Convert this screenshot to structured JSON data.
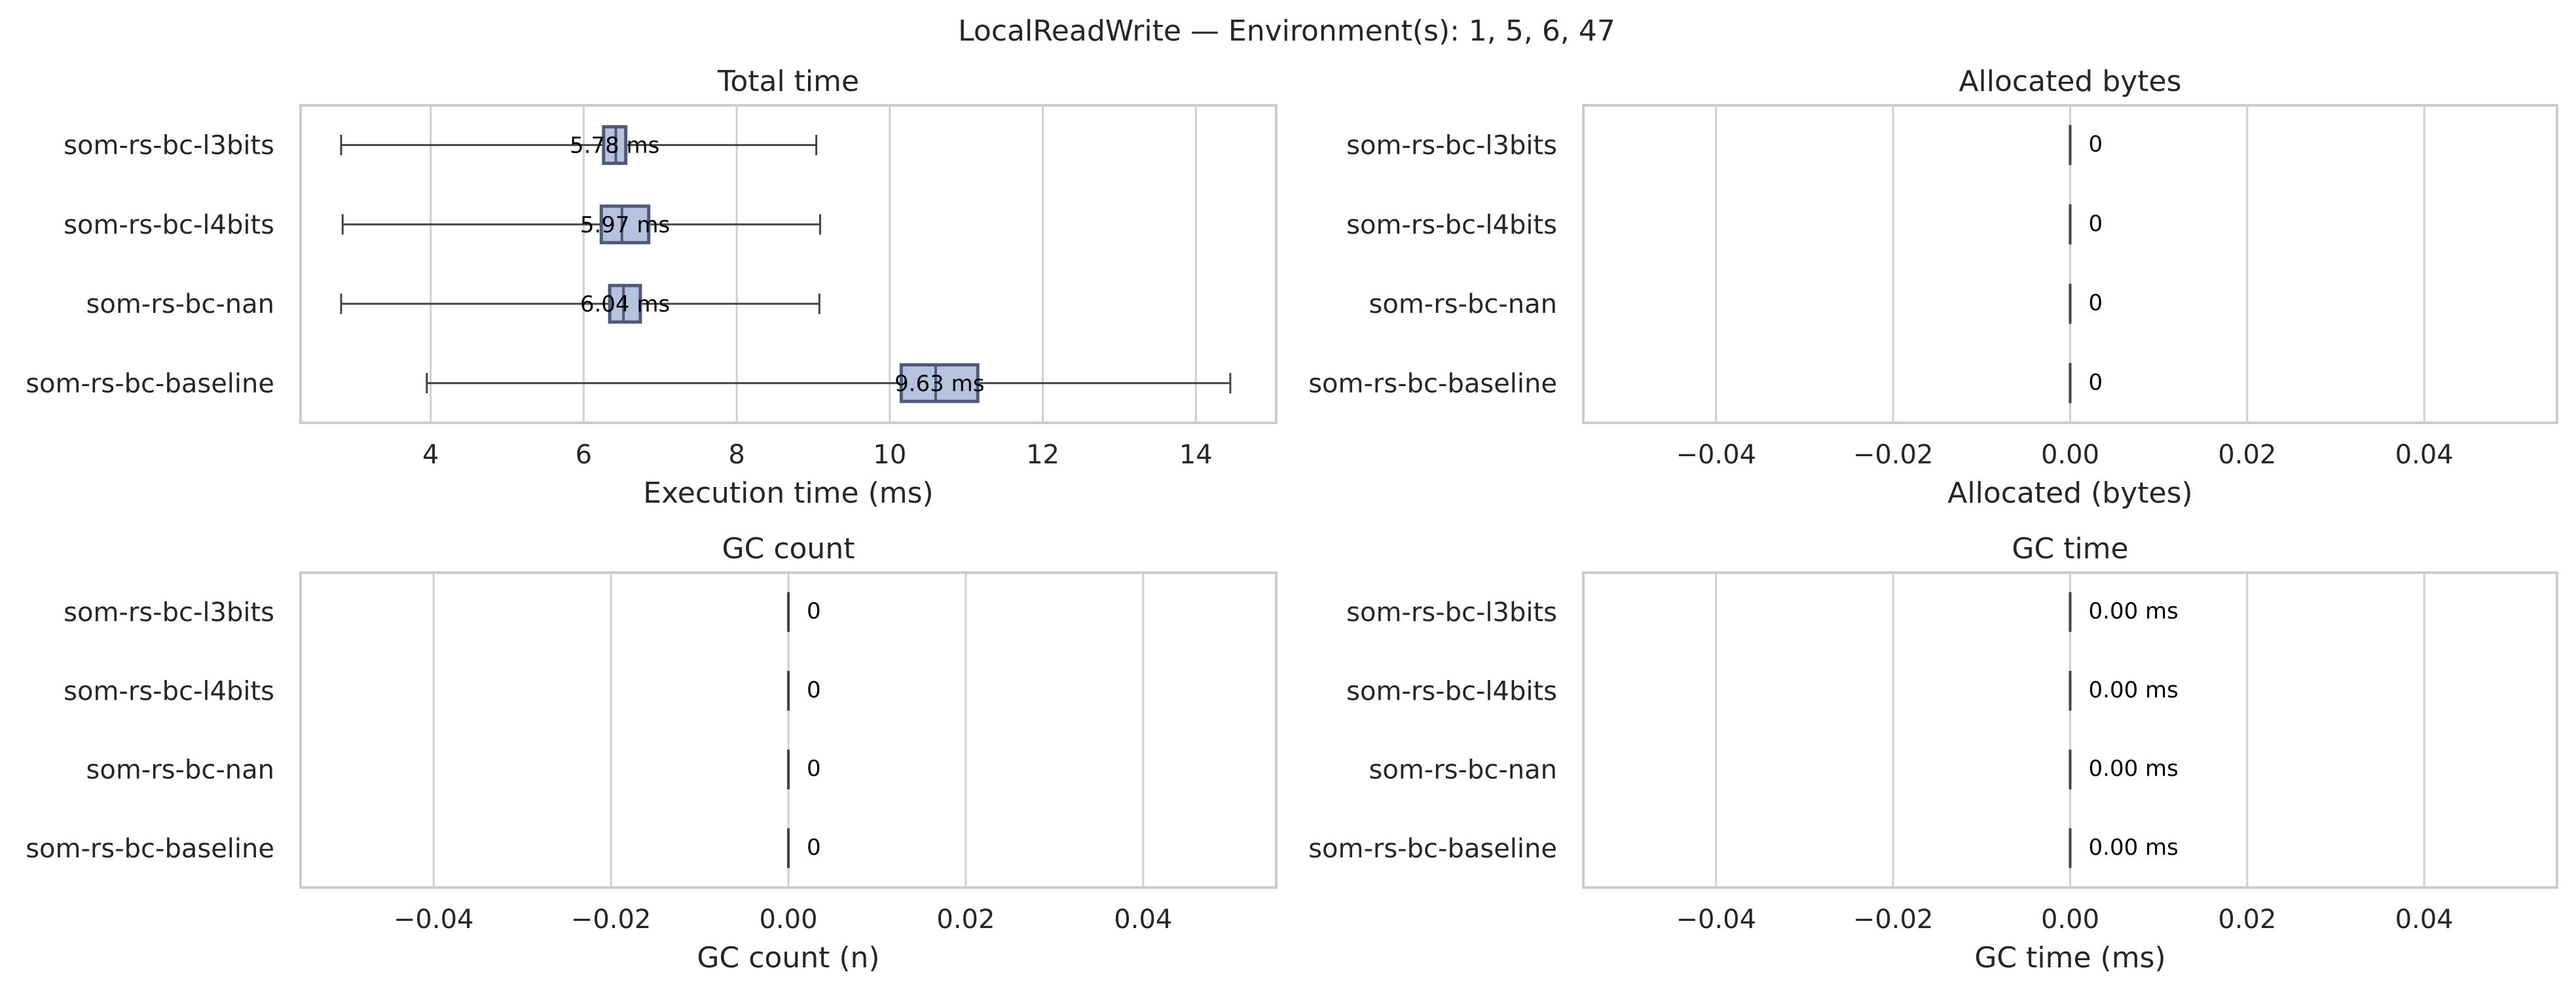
{
  "figure": {
    "suptitle": "LocalReadWrite — Environment(s): 1, 5, 6, 47"
  },
  "chart_data": [
    {
      "type": "box",
      "title": "Total time",
      "xlabel": "Execution time (ms)",
      "ylabel": "",
      "xlim": [
        2.3,
        15.05
      ],
      "xticks": [
        4,
        6,
        8,
        10,
        12,
        14
      ],
      "tick_labels": [
        "4",
        "6",
        "8",
        "10",
        "12",
        "14"
      ],
      "grid": true,
      "categories": [
        "som-rs-bc-l3bits",
        "som-rs-bc-l4bits",
        "som-rs-bc-nan",
        "som-rs-bc-baseline"
      ],
      "boxes": [
        {
          "category": "som-rs-bc-l3bits",
          "whisker_low": 2.83,
          "q1": 6.26,
          "median": 6.42,
          "q3": 6.55,
          "whisker_high": 9.04,
          "label": "5.78 ms"
        },
        {
          "category": "som-rs-bc-l4bits",
          "whisker_low": 2.85,
          "q1": 6.23,
          "median": 6.5,
          "q3": 6.85,
          "whisker_high": 9.09,
          "label": "5.97 ms"
        },
        {
          "category": "som-rs-bc-nan",
          "whisker_low": 2.83,
          "q1": 6.34,
          "median": 6.52,
          "q3": 6.74,
          "whisker_high": 9.08,
          "label": "6.04 ms"
        },
        {
          "category": "som-rs-bc-baseline",
          "whisker_low": 3.95,
          "q1": 10.15,
          "median": 10.6,
          "q3": 11.15,
          "whisker_high": 14.45,
          "label": "9.63 ms"
        }
      ]
    },
    {
      "type": "box",
      "title": "Allocated bytes",
      "xlabel": "Allocated (bytes)",
      "ylabel": "",
      "xlim": [
        -0.055,
        0.055
      ],
      "xticks": [
        -0.04,
        -0.02,
        0,
        0.02,
        0.04
      ],
      "tick_labels": [
        "−0.04",
        "−0.02",
        "0.00",
        "0.02",
        "0.04"
      ],
      "grid": true,
      "categories": [
        "som-rs-bc-l3bits",
        "som-rs-bc-l4bits",
        "som-rs-bc-nan",
        "som-rs-bc-baseline"
      ],
      "boxes": [
        {
          "category": "som-rs-bc-l3bits",
          "whisker_low": 0,
          "q1": 0,
          "median": 0,
          "q3": 0,
          "whisker_high": 0,
          "label": "0"
        },
        {
          "category": "som-rs-bc-l4bits",
          "whisker_low": 0,
          "q1": 0,
          "median": 0,
          "q3": 0,
          "whisker_high": 0,
          "label": "0"
        },
        {
          "category": "som-rs-bc-nan",
          "whisker_low": 0,
          "q1": 0,
          "median": 0,
          "q3": 0,
          "whisker_high": 0,
          "label": "0"
        },
        {
          "category": "som-rs-bc-baseline",
          "whisker_low": 0,
          "q1": 0,
          "median": 0,
          "q3": 0,
          "whisker_high": 0,
          "label": "0"
        }
      ]
    },
    {
      "type": "box",
      "title": "GC count",
      "xlabel": "GC count (n)",
      "ylabel": "",
      "xlim": [
        -0.055,
        0.055
      ],
      "xticks": [
        -0.04,
        -0.02,
        0,
        0.02,
        0.04
      ],
      "tick_labels": [
        "−0.04",
        "−0.02",
        "0.00",
        "0.02",
        "0.04"
      ],
      "grid": true,
      "categories": [
        "som-rs-bc-l3bits",
        "som-rs-bc-l4bits",
        "som-rs-bc-nan",
        "som-rs-bc-baseline"
      ],
      "boxes": [
        {
          "category": "som-rs-bc-l3bits",
          "whisker_low": 0,
          "q1": 0,
          "median": 0,
          "q3": 0,
          "whisker_high": 0,
          "label": "0"
        },
        {
          "category": "som-rs-bc-l4bits",
          "whisker_low": 0,
          "q1": 0,
          "median": 0,
          "q3": 0,
          "whisker_high": 0,
          "label": "0"
        },
        {
          "category": "som-rs-bc-nan",
          "whisker_low": 0,
          "q1": 0,
          "median": 0,
          "q3": 0,
          "whisker_high": 0,
          "label": "0"
        },
        {
          "category": "som-rs-bc-baseline",
          "whisker_low": 0,
          "q1": 0,
          "median": 0,
          "q3": 0,
          "whisker_high": 0,
          "label": "0"
        }
      ]
    },
    {
      "type": "box",
      "title": "GC time",
      "xlabel": "GC time (ms)",
      "ylabel": "",
      "xlim": [
        -0.055,
        0.055
      ],
      "xticks": [
        -0.04,
        -0.02,
        0,
        0.02,
        0.04
      ],
      "tick_labels": [
        "−0.04",
        "−0.02",
        "0.00",
        "0.02",
        "0.04"
      ],
      "grid": true,
      "categories": [
        "som-rs-bc-l3bits",
        "som-rs-bc-l4bits",
        "som-rs-bc-nan",
        "som-rs-bc-baseline"
      ],
      "boxes": [
        {
          "category": "som-rs-bc-l3bits",
          "whisker_low": 0,
          "q1": 0,
          "median": 0,
          "q3": 0,
          "whisker_high": 0,
          "label": "0.00 ms"
        },
        {
          "category": "som-rs-bc-l4bits",
          "whisker_low": 0,
          "q1": 0,
          "median": 0,
          "q3": 0,
          "whisker_high": 0,
          "label": "0.00 ms"
        },
        {
          "category": "som-rs-bc-nan",
          "whisker_low": 0,
          "q1": 0,
          "median": 0,
          "q3": 0,
          "whisker_high": 0,
          "label": "0.00 ms"
        },
        {
          "category": "som-rs-bc-baseline",
          "whisker_low": 0,
          "q1": 0,
          "median": 0,
          "q3": 0,
          "whisker_high": 0,
          "label": "0.00 ms"
        }
      ]
    }
  ],
  "colors": {
    "box_fill": "#b6c3de",
    "box_edge": "#4d5a7a",
    "whisker": "#444444",
    "grid": "#d0d0d0",
    "spine": "#cccccc",
    "text": "#262626",
    "label_text": "#000000"
  }
}
